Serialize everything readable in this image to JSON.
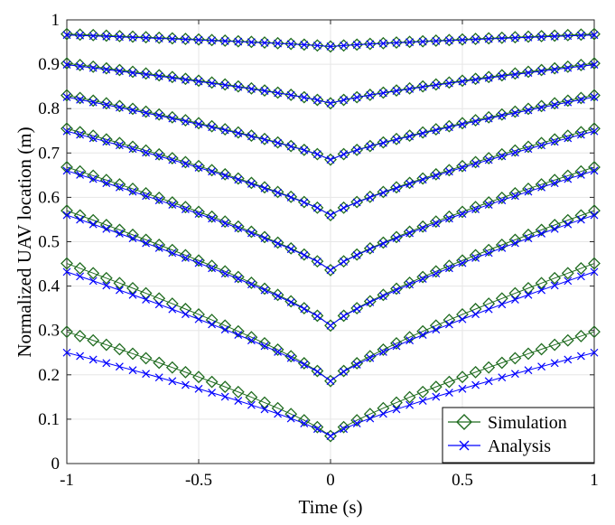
{
  "chart_data": {
    "type": "line",
    "title": "",
    "xlabel": "Time (s)",
    "ylabel": "Normalized UAV location (m)",
    "xlim": [
      -1,
      1
    ],
    "ylim": [
      0,
      1
    ],
    "xticks": [
      -1,
      -0.5,
      0,
      0.5,
      1
    ],
    "xtick_labels": [
      "-1",
      "-0.5",
      "0",
      "0.5",
      "1"
    ],
    "yticks": [
      0,
      0.1,
      0.2,
      0.3,
      0.4,
      0.5,
      0.6,
      0.7,
      0.8,
      0.9,
      1
    ],
    "ytick_labels": [
      "0",
      "0.1",
      "0.2",
      "0.3",
      "0.4",
      "0.5",
      "0.6",
      "0.7",
      "0.8",
      "0.9",
      "1"
    ],
    "grid": true,
    "legend_position": "bottom-right",
    "x": [
      -1,
      -0.95,
      -0.9,
      -0.85,
      -0.8,
      -0.75,
      -0.7,
      -0.65,
      -0.6,
      -0.55,
      -0.5,
      -0.45,
      -0.4,
      -0.35,
      -0.3,
      -0.25,
      -0.2,
      -0.15,
      -0.1,
      -0.05,
      0,
      0.05,
      0.1,
      0.15,
      0.2,
      0.25,
      0.3,
      0.35,
      0.4,
      0.45,
      0.5,
      0.55,
      0.6,
      0.65,
      0.7,
      0.75,
      0.8,
      0.85,
      0.9,
      0.95,
      1
    ],
    "trajectories": [
      {
        "edge_simulation": 0.968,
        "edge_analysis": 0.966,
        "center": 0.94
      },
      {
        "edge_simulation": 0.902,
        "edge_analysis": 0.899,
        "center": 0.812
      },
      {
        "edge_simulation": 0.83,
        "edge_analysis": 0.826,
        "center": 0.685
      },
      {
        "edge_simulation": 0.755,
        "edge_analysis": 0.749,
        "center": 0.56
      },
      {
        "edge_simulation": 0.668,
        "edge_analysis": 0.66,
        "center": 0.436
      },
      {
        "edge_simulation": 0.57,
        "edge_analysis": 0.56,
        "center": 0.311
      },
      {
        "edge_simulation": 0.451,
        "edge_analysis": 0.432,
        "center": 0.186
      },
      {
        "edge_simulation": 0.297,
        "edge_analysis": 0.25,
        "center": 0.062
      }
    ],
    "series": [
      {
        "name": "Simulation",
        "color": "#1f6b1f",
        "marker": "diamond"
      },
      {
        "name": "Analysis",
        "color": "#0000ff",
        "marker": "x"
      }
    ]
  }
}
